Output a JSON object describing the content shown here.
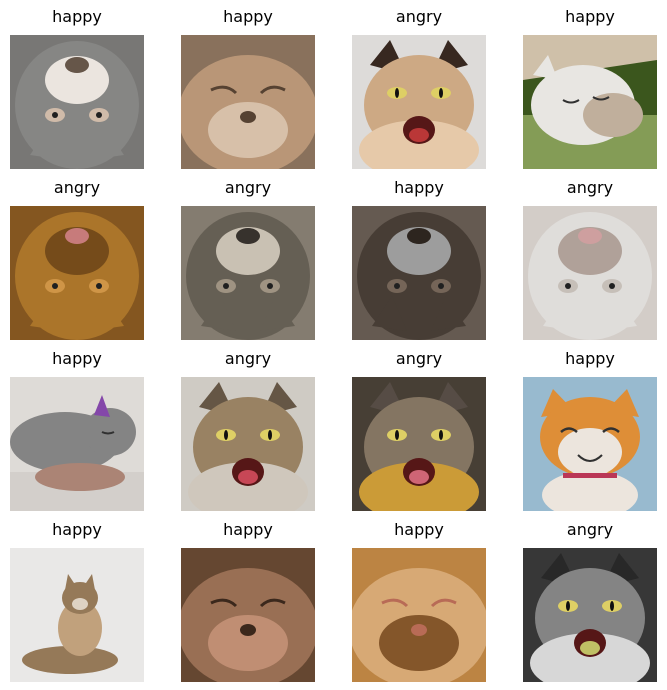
{
  "grid": {
    "items": [
      {
        "label": "happy",
        "palette": [
          "#8c8c8a",
          "#d9c3b0",
          "#f5efe9",
          "#6b5a4d"
        ],
        "pose": "upside-down",
        "bg": "#7d7c7a"
      },
      {
        "label": "happy",
        "palette": [
          "#8f7660",
          "#c19d7c",
          "#e0c8b0",
          "#5a4535"
        ],
        "pose": "closeup",
        "bg": "#9a846d"
      },
      {
        "label": "angry",
        "palette": [
          "#3a2a22",
          "#d6b08a",
          "#f0d2b0",
          "#c23a3a"
        ],
        "pose": "hiss",
        "bg": "#e6e4e2"
      },
      {
        "label": "happy",
        "palette": [
          "#f2f0ec",
          "#c8b7a3",
          "#4f6b2a",
          "#8aa35a"
        ],
        "pose": "sleep",
        "bg": "#3e5a1f"
      },
      {
        "label": "angry",
        "palette": [
          "#b27a2c",
          "#d89c4a",
          "#7a4f1c",
          "#d08080"
        ],
        "pose": "upside-down",
        "bg": "#8a5a22"
      },
      {
        "label": "angry",
        "palette": [
          "#6a6358",
          "#a69a88",
          "#d2c9bb",
          "#3a352f"
        ],
        "pose": "upside-down",
        "bg": "#8a8275"
      },
      {
        "label": "happy",
        "palette": [
          "#4a4038",
          "#7a6a5c",
          "#a4a4a4",
          "#2f2721"
        ],
        "pose": "upside-down",
        "bg": "#6a5e55"
      },
      {
        "label": "angry",
        "palette": [
          "#e9e6e3",
          "#cfc7c0",
          "#b8a8a0",
          "#d7a6a6"
        ],
        "pose": "upside-down",
        "bg": "#dcd6d1"
      },
      {
        "label": "happy",
        "palette": [
          "#8a8a8a",
          "#d6cfc8",
          "#f4f2f0",
          "#b28a7a"
        ],
        "pose": "lying",
        "bg": "#e8e4e0"
      },
      {
        "label": "angry",
        "palette": [
          "#6a5a48",
          "#a08868",
          "#d8d0c4",
          "#d04a5a"
        ],
        "pose": "hiss",
        "bg": "#d8d4cc"
      },
      {
        "label": "angry",
        "palette": [
          "#5a5048",
          "#8a7a66",
          "#d4a23a",
          "#d86a7a"
        ],
        "pose": "hiss",
        "bg": "#4a4238"
      },
      {
        "label": "happy",
        "palette": [
          "#e8943a",
          "#f6efe6",
          "#9fc2d8",
          "#c23a5a"
        ],
        "pose": "smile",
        "bg": "#bcd0df"
      },
      {
        "label": "happy",
        "palette": [
          "#9c7e5c",
          "#c9a882",
          "#f4f2f0",
          "#5a4634"
        ],
        "pose": "sitting",
        "bg": "#f3f2f1"
      },
      {
        "label": "happy",
        "palette": [
          "#6a4a34",
          "#a07458",
          "#c89478",
          "#3e2a1e"
        ],
        "pose": "closeup",
        "bg": "#5a3e2c"
      },
      {
        "label": "happy",
        "palette": [
          "#c48a46",
          "#e0b07a",
          "#8a5a2c",
          "#c0705a"
        ],
        "pose": "closeup",
        "bg": "#a86e34"
      },
      {
        "label": "angry",
        "palette": [
          "#2a2a2a",
          "#8a8a8a",
          "#e0e0e0",
          "#c8c86a"
        ],
        "pose": "hiss",
        "bg": "#3a3a3a"
      }
    ]
  }
}
